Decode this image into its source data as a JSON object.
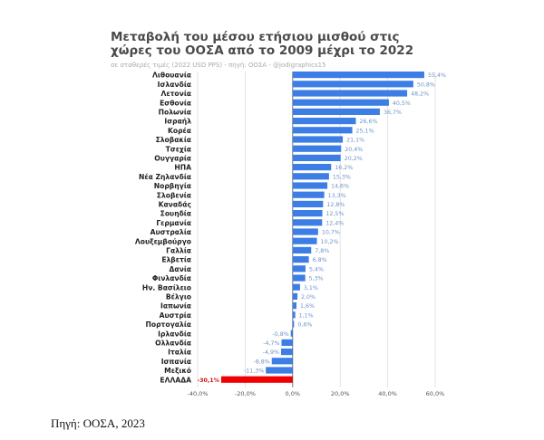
{
  "chart_data": {
    "type": "bar",
    "orientation": "horizontal",
    "title": [
      "Μεταβολή του μέσου ετήσιου μισθού στις",
      "χώρες του ΟΟΣΑ από το 2009 μέχρι το 2022"
    ],
    "subtitle": "σε σταθερές τιμές (2022 USD PPS) - πηγή: ΟΟΣΑ - @jodigraphics15",
    "xlabel": "",
    "ylabel": "",
    "xlim": [
      -40,
      60
    ],
    "xticks": [
      -40,
      -20,
      0,
      20,
      40,
      60
    ],
    "xtick_labels": [
      "-40,0%",
      "-20,0%",
      "0,0%",
      "20,0%",
      "40,0%",
      "60,0%"
    ],
    "grid": true,
    "colors": {
      "default": "#3d7ee6",
      "highlight": "#f00000",
      "highlight_label": "#d01010"
    },
    "categories": [
      "Λιθουανία",
      "Ισλανδία",
      "Λετονία",
      "Εσθονία",
      "Πολωνία",
      "Ισραήλ",
      "Κορέα",
      "Σλοβακία",
      "Τσεχία",
      "Ουγγαρία",
      "ΗΠΑ",
      "Νέα Ζηλανδία",
      "Νορβηγία",
      "Σλοβενία",
      "Καναδάς",
      "Σουηδία",
      "Γερμανία",
      "Αυστραλία",
      "Λουξεμβούργο",
      "Γαλλία",
      "Ελβετία",
      "Δανία",
      "Φινλανδία",
      "Ην. Βασίλειο",
      "Βέλγιο",
      "Ιαπωνία",
      "Αυστρία",
      "Πορτογαλία",
      "Ιρλανδία",
      "Ολλανδία",
      "Ιταλία",
      "Ισπανία",
      "Μεξικό",
      "ΕΛΛΑΔΑ"
    ],
    "values": [
      55.4,
      50.8,
      48.2,
      40.5,
      36.7,
      26.6,
      25.1,
      21.1,
      20.4,
      20.2,
      16.2,
      15.3,
      14.6,
      13.3,
      12.8,
      12.5,
      12.4,
      10.7,
      10.2,
      7.8,
      6.8,
      5.4,
      5.3,
      3.1,
      2.0,
      1.6,
      1.1,
      0.6,
      -0.8,
      -4.7,
      -4.9,
      -8.8,
      -11.3,
      -30.1
    ],
    "value_labels": [
      "55,4%",
      "50,8%",
      "48,2%",
      "40,5%",
      "36,7%",
      "26,6%",
      "25,1%",
      "21,1%",
      "20,4%",
      "20,2%",
      "16,2%",
      "15,3%",
      "14,6%",
      "13,3%",
      "12,8%",
      "12,5%",
      "12,4%",
      "10,7%",
      "10,2%",
      "7,8%",
      "6,8%",
      "5,4%",
      "5,3%",
      "3,1%",
      "2,0%",
      "1,6%",
      "1,1%",
      "0,6%",
      "-0,8%",
      "-4,7%",
      "-4,9%",
      "-8,8%",
      "-11,3%",
      "-30,1%"
    ],
    "highlight": "ΕΛΛΑΔΑ"
  },
  "footer": "Πηγή: ΟΟΣΑ, 2023"
}
